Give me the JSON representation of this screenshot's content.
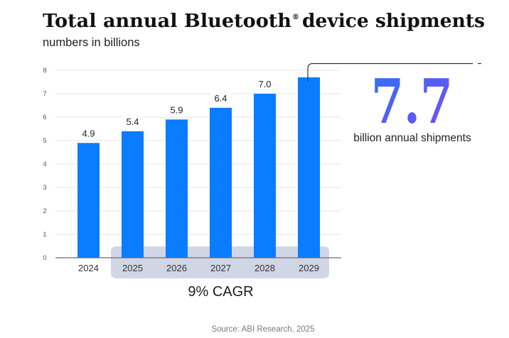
{
  "header": {
    "title_main": "Total annual Bluetooth",
    "title_mark": "®",
    "title_rest": "device shipments",
    "subtitle": "numbers in billions"
  },
  "colors": {
    "bar": "#0a7cff",
    "cagr_highlight": "#d1d6e7",
    "callout_gradient_start": "#2f72f0",
    "callout_gradient_end": "#7b4bf6",
    "axis": "#6e6e6e",
    "grid": "#e6e6e6"
  },
  "chart_data": {
    "type": "bar",
    "title": "Total annual Bluetooth® device shipments",
    "subtitle": "numbers in billions",
    "xlabel": "",
    "ylabel": "",
    "categories": [
      "2024",
      "2025",
      "2026",
      "2027",
      "2028",
      "2029"
    ],
    "values": [
      4.9,
      5.4,
      5.9,
      6.4,
      7.0,
      7.7
    ],
    "value_labels": [
      "4.9",
      "5.4",
      "5.9",
      "6.4",
      "7.0",
      ""
    ],
    "ylim": [
      0,
      8
    ],
    "yticks": [
      "0",
      "1",
      "2",
      "3",
      "4",
      "5",
      "6",
      "7",
      "8"
    ],
    "grid": true,
    "annotations": {
      "cagr": {
        "label": "9% CAGR",
        "from": "2025",
        "to": "2029"
      },
      "callout": {
        "category": "2029",
        "value": "7.7",
        "caption": "billion annual shipments"
      }
    },
    "source": "Source: ABI Research, 2025"
  }
}
